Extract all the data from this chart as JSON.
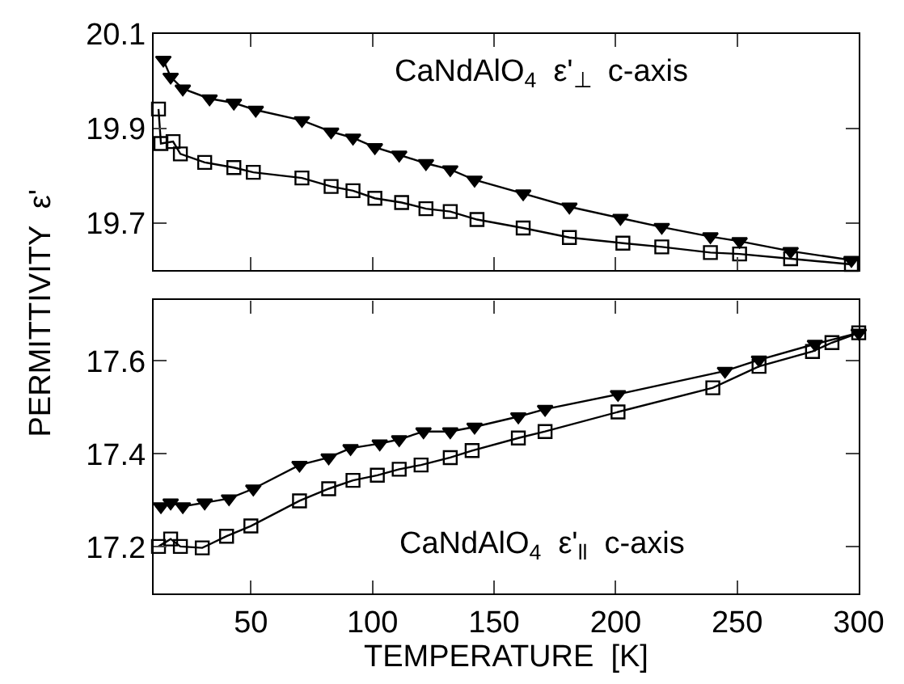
{
  "chart_data": [
    {
      "type": "line",
      "title": "CaNdAlO$_{4}$  ε'$_{⊥}$  c-axis",
      "ylabel": "PERMITTIVITY  ε'",
      "xlim": [
        10,
        300
      ],
      "xticks": [
        50,
        100,
        150,
        200,
        250,
        300
      ],
      "ylim": [
        19.6,
        20.1
      ],
      "yticks": [
        19.7,
        19.9,
        20.1
      ],
      "tick_labels": "y",
      "line_style": "solid",
      "series": [
        {
          "color": "#000000",
          "marker": "triangle",
          "x": [
            14,
            17,
            22,
            33,
            43,
            52,
            71,
            83,
            92,
            101,
            111,
            122,
            132,
            142,
            162,
            181,
            202,
            219,
            239,
            251,
            272,
            297
          ],
          "values": [
            20.045,
            20.009,
            19.984,
            19.963,
            19.954,
            19.939,
            19.917,
            19.893,
            19.88,
            19.86,
            19.844,
            19.826,
            19.813,
            19.791,
            19.762,
            19.734,
            19.71,
            19.691,
            19.671,
            19.661,
            19.64,
            19.621
          ]
        },
        {
          "color": "#000000",
          "marker": "square",
          "x": [
            12,
            13,
            18,
            21,
            31,
            43,
            51,
            71,
            83,
            92,
            101,
            112,
            122,
            132,
            143,
            162,
            181,
            203,
            219,
            239,
            251,
            272,
            297
          ],
          "values": [
            19.941,
            19.868,
            19.872,
            19.846,
            19.828,
            19.817,
            19.807,
            19.795,
            19.777,
            19.768,
            19.752,
            19.743,
            19.73,
            19.724,
            19.707,
            19.689,
            19.669,
            19.657,
            19.649,
            19.637,
            19.634,
            19.624,
            19.612
          ]
        }
      ]
    },
    {
      "type": "line",
      "title": "CaNdAlO$_{4}$  ε'$_{ll}$  c-axis",
      "xlabel": "TEMPERATURE  [K]",
      "xlim": [
        10,
        300
      ],
      "xticks": [
        50,
        100,
        150,
        200,
        250,
        300
      ],
      "ylim": [
        17.1,
        17.73
      ],
      "yticks": [
        17.2,
        17.4,
        17.6
      ],
      "line_style": "solid",
      "series": [
        {
          "color": "#000000",
          "marker": "triangle",
          "x": [
            13,
            17,
            22,
            31,
            41,
            51,
            70,
            82,
            91,
            103,
            111,
            121,
            132,
            142,
            160,
            171,
            201,
            245,
            259,
            282,
            300
          ],
          "values": [
            17.287,
            17.295,
            17.287,
            17.295,
            17.304,
            17.325,
            17.376,
            17.392,
            17.412,
            17.422,
            17.431,
            17.448,
            17.448,
            17.458,
            17.48,
            17.496,
            17.528,
            17.578,
            17.602,
            17.636,
            17.66
          ]
        },
        {
          "color": "#000000",
          "marker": "square",
          "x": [
            12,
            17,
            21,
            30,
            40,
            50,
            70,
            82,
            92,
            102,
            111,
            120,
            132,
            141,
            160,
            171,
            201,
            240,
            259,
            281,
            289,
            300
          ],
          "values": [
            17.201,
            17.217,
            17.201,
            17.198,
            17.223,
            17.245,
            17.299,
            17.325,
            17.343,
            17.354,
            17.367,
            17.376,
            17.392,
            17.407,
            17.434,
            17.448,
            17.49,
            17.542,
            17.588,
            17.62,
            17.639,
            17.66
          ]
        }
      ]
    }
  ]
}
